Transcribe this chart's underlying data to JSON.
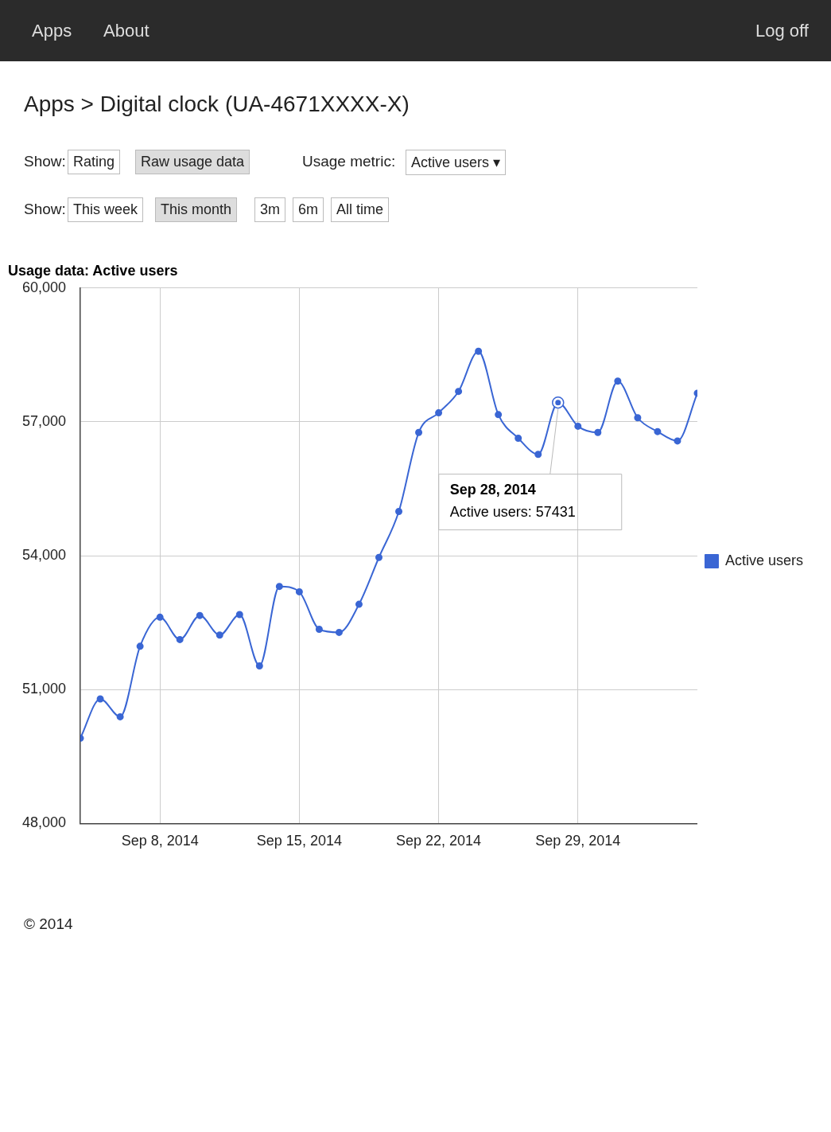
{
  "chart_data": {
    "type": "line",
    "title": "Usage data: Active users",
    "subtitle": "Apps > Digital clock (UA-4671XXXX-X)",
    "x": [
      "2014-09-04",
      "2014-09-05",
      "2014-09-06",
      "2014-09-07",
      "2014-09-08",
      "2014-09-09",
      "2014-09-10",
      "2014-09-11",
      "2014-09-12",
      "2014-09-13",
      "2014-09-14",
      "2014-09-15",
      "2014-09-16",
      "2014-09-17",
      "2014-09-18",
      "2014-09-19",
      "2014-09-20",
      "2014-09-21",
      "2014-09-22",
      "2014-09-23",
      "2014-09-24",
      "2014-09-25",
      "2014-09-26",
      "2014-09-27",
      "2014-09-28",
      "2014-09-29",
      "2014-09-30",
      "2014-10-01",
      "2014-10-02",
      "2014-10-03",
      "2014-10-04",
      "2014-10-05"
    ],
    "series": [
      {
        "name": "Active users",
        "color": "#3a66d4",
        "values": [
          49910,
          50790,
          50390,
          51970,
          52620,
          52120,
          52660,
          52220,
          52680,
          51530,
          53310,
          53190,
          52350,
          52280,
          52910,
          53960,
          54990,
          56760,
          57200,
          57680,
          58580,
          57160,
          56630,
          56270,
          57431,
          56900,
          56760,
          57910,
          57090,
          56780,
          56570,
          57640
        ]
      }
    ],
    "xlim": [
      "2014-09-04",
      "2014-10-05"
    ],
    "xticks": [
      {
        "value": "2014-09-08",
        "label": "Sep 8, 2014"
      },
      {
        "value": "2014-09-15",
        "label": "Sep 15, 2014"
      },
      {
        "value": "2014-09-22",
        "label": "Sep 22, 2014"
      },
      {
        "value": "2014-09-29",
        "label": "Sep 29, 2014"
      }
    ],
    "ylim": [
      48000,
      60000
    ],
    "yticks": [
      {
        "value": 48000,
        "label": "48,000"
      },
      {
        "value": 51000,
        "label": "51,000"
      },
      {
        "value": 54000,
        "label": "54,000"
      },
      {
        "value": 57000,
        "label": "57,000"
      },
      {
        "value": 60000,
        "label": "60,000"
      }
    ],
    "grid": true,
    "legend": "right",
    "marker": "circle",
    "line_style": "solid",
    "annotations": [
      "Apps",
      "About",
      "Log off",
      "Show:",
      "Rating",
      "Raw usage data",
      "Usage metric:",
      "Active users ▾",
      "Show:",
      "This week",
      "This month",
      "3m",
      "6m",
      "All time",
      "© 2014",
      {
        "text": "Sep 28, 2014\nActive users: 57431",
        "x": "2014-09-28",
        "y": 57431
      }
    ]
  }
}
